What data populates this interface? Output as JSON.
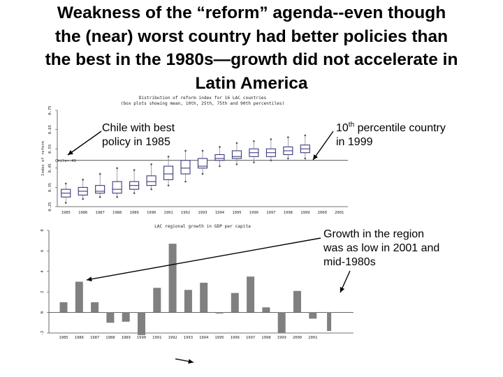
{
  "slide": {
    "title_lines": [
      "Weakness of the “reform” agenda--even though",
      "the (near) worst country had better policies than",
      "the best in the 1980s—growth did not accelerate in",
      "Latin America"
    ]
  },
  "annotations": {
    "chile": [
      "Chile with best",
      "policy in 1985"
    ],
    "tenth_main": "10",
    "tenth_sup": "th",
    "tenth_rest": " percentile country",
    "tenth_line2": "in 1999",
    "growth": [
      "Growth in the region",
      "was as low in 2001 and",
      "mid-1980s"
    ]
  },
  "chart_data": [
    {
      "type": "box",
      "title": "Distribution of reform index for 16 LAC countries",
      "subtitle": "(box plots showing mean, 10th, 25th, 75th and 90th percentiles)",
      "ylabel": "Index of reform",
      "ylim": [
        0.25,
        0.75
      ],
      "yticks": [
        "0.25",
        "0.35",
        "0.45",
        "0.55",
        "0.65",
        "0.75"
      ],
      "reference_label": "Chile=.49",
      "reference_value": 0.49,
      "categories": [
        "1985",
        "1986",
        "1987",
        "1988",
        "1989",
        "1990",
        "1991",
        "1992",
        "1993",
        "1994",
        "1995",
        "1996",
        "1997",
        "1998",
        "1999",
        "2000",
        "2001"
      ],
      "boxes": [
        {
          "p10": 0.27,
          "p25": 0.3,
          "mean": 0.32,
          "p75": 0.34,
          "p90": 0.37
        },
        {
          "p10": 0.29,
          "p25": 0.31,
          "mean": 0.33,
          "p75": 0.35,
          "p90": 0.39
        },
        {
          "p10": 0.3,
          "p25": 0.32,
          "mean": 0.33,
          "p75": 0.36,
          "p90": 0.42
        },
        {
          "p10": 0.3,
          "p25": 0.32,
          "mean": 0.34,
          "p75": 0.38,
          "p90": 0.45
        },
        {
          "p10": 0.32,
          "p25": 0.34,
          "mean": 0.36,
          "p75": 0.38,
          "p90": 0.44
        },
        {
          "p10": 0.34,
          "p25": 0.36,
          "mean": 0.38,
          "p75": 0.41,
          "p90": 0.47
        },
        {
          "p10": 0.36,
          "p25": 0.39,
          "mean": 0.42,
          "p75": 0.46,
          "p90": 0.51
        },
        {
          "p10": 0.38,
          "p25": 0.42,
          "mean": 0.45,
          "p75": 0.49,
          "p90": 0.54
        },
        {
          "p10": 0.42,
          "p25": 0.45,
          "mean": 0.46,
          "p75": 0.5,
          "p90": 0.54
        },
        {
          "p10": 0.46,
          "p25": 0.49,
          "mean": 0.5,
          "p75": 0.52,
          "p90": 0.56
        },
        {
          "p10": 0.47,
          "p25": 0.5,
          "mean": 0.51,
          "p75": 0.54,
          "p90": 0.58
        },
        {
          "p10": 0.48,
          "p25": 0.51,
          "mean": 0.53,
          "p75": 0.55,
          "p90": 0.59
        },
        {
          "p10": 0.49,
          "p25": 0.51,
          "mean": 0.53,
          "p75": 0.55,
          "p90": 0.6
        },
        {
          "p10": 0.5,
          "p25": 0.52,
          "mean": 0.54,
          "p75": 0.56,
          "p90": 0.61
        },
        {
          "p10": 0.5,
          "p25": 0.53,
          "mean": 0.55,
          "p75": 0.57,
          "p90": 0.62
        }
      ],
      "xlabel": "",
      "grid": false
    },
    {
      "type": "bar",
      "title": "LAC regional growth in GDP per capita",
      "ylim": [
        -2,
        8
      ],
      "yticks": [
        "8",
        "6",
        "4",
        "2",
        "0",
        "-2"
      ],
      "categories": [
        "1985",
        "1986",
        "1987",
        "1988",
        "1989",
        "1990",
        "1991",
        "1992",
        "1993",
        "1994",
        "1995",
        "1996",
        "1997",
        "1998",
        "1999",
        "2000",
        "2001"
      ],
      "values": [
        1.0,
        3.0,
        1.0,
        -1.0,
        -0.9,
        -2.2,
        2.4,
        6.7,
        2.2,
        2.9,
        -0.1,
        1.9,
        3.5,
        0.5,
        -2.0,
        2.1,
        -0.6
      ],
      "extra_value": -1.8,
      "bar_color": "#808080",
      "xlabel": "",
      "ylabel": "",
      "grid": false
    }
  ]
}
